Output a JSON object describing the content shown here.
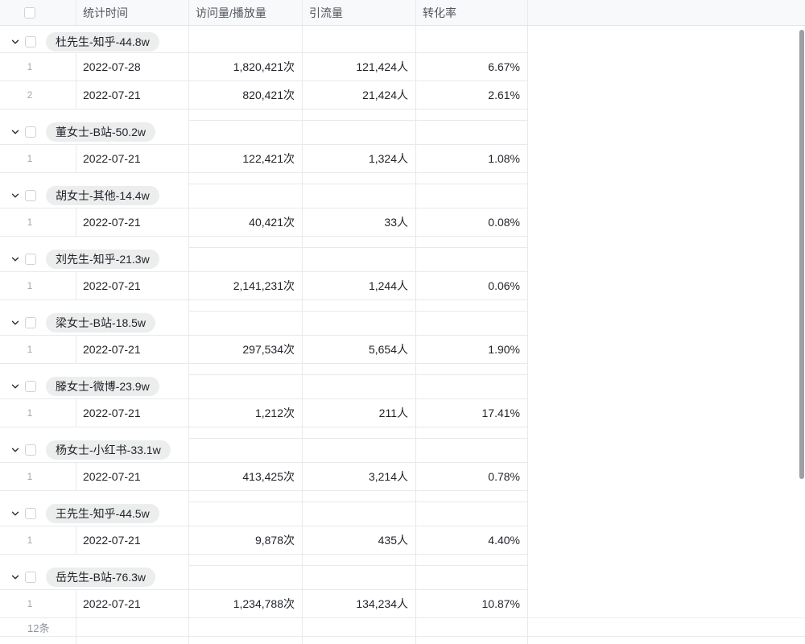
{
  "table": {
    "header": {
      "select_all_checked": false,
      "columns": [
        {
          "key": "stat_time",
          "label": "统计时间",
          "align": "left"
        },
        {
          "key": "visits",
          "label": "访问量/播放量",
          "align": "left"
        },
        {
          "key": "leads",
          "label": "引流量",
          "align": "left"
        },
        {
          "key": "conversion_rate",
          "label": "转化率",
          "align": "left"
        }
      ]
    },
    "groups": [
      {
        "label": "杜先生-知乎-44.8w",
        "rows": [
          {
            "index": "1",
            "stat_time": "2022-07-28",
            "visits": "1,820,421次",
            "leads": "121,424人",
            "conversion_rate": "6.67%"
          },
          {
            "index": "2",
            "stat_time": "2022-07-21",
            "visits": "820,421次",
            "leads": "21,424人",
            "conversion_rate": "2.61%"
          }
        ]
      },
      {
        "label": "董女士-B站-50.2w",
        "rows": [
          {
            "index": "1",
            "stat_time": "2022-07-21",
            "visits": "122,421次",
            "leads": "1,324人",
            "conversion_rate": "1.08%"
          }
        ]
      },
      {
        "label": "胡女士-其他-14.4w",
        "rows": [
          {
            "index": "1",
            "stat_time": "2022-07-21",
            "visits": "40,421次",
            "leads": "33人",
            "conversion_rate": "0.08%"
          }
        ]
      },
      {
        "label": "刘先生-知乎-21.3w",
        "rows": [
          {
            "index": "1",
            "stat_time": "2022-07-21",
            "visits": "2,141,231次",
            "leads": "1,244人",
            "conversion_rate": "0.06%"
          }
        ]
      },
      {
        "label": "梁女士-B站-18.5w",
        "rows": [
          {
            "index": "1",
            "stat_time": "2022-07-21",
            "visits": "297,534次",
            "leads": "5,654人",
            "conversion_rate": "1.90%"
          }
        ]
      },
      {
        "label": "滕女士-微博-23.9w",
        "rows": [
          {
            "index": "1",
            "stat_time": "2022-07-21",
            "visits": "1,212次",
            "leads": "211人",
            "conversion_rate": "17.41%"
          }
        ]
      },
      {
        "label": "杨女士-小红书-33.1w",
        "rows": [
          {
            "index": "1",
            "stat_time": "2022-07-21",
            "visits": "413,425次",
            "leads": "3,214人",
            "conversion_rate": "0.78%"
          }
        ]
      },
      {
        "label": "王先生-知乎-44.5w",
        "rows": [
          {
            "index": "1",
            "stat_time": "2022-07-21",
            "visits": "9,878次",
            "leads": "435人",
            "conversion_rate": "4.40%"
          }
        ]
      },
      {
        "label": "岳先生-B站-76.3w",
        "rows": [
          {
            "index": "1",
            "stat_time": "2022-07-21",
            "visits": "1,234,788次",
            "leads": "134,234人",
            "conversion_rate": "10.87%"
          }
        ]
      }
    ],
    "footer": {
      "record_count": "12条"
    }
  },
  "icons": {
    "group_collapse": "chevron-down-icon"
  },
  "colors": {
    "grid_line": "#e7e9eb",
    "header_bg": "#f8f9fa",
    "pill_bg": "#eceded",
    "text_primary": "#1f2329",
    "text_header": "#51565d",
    "text_secondary": "#8f959e",
    "scrollbar": "#9ba0a5"
  }
}
